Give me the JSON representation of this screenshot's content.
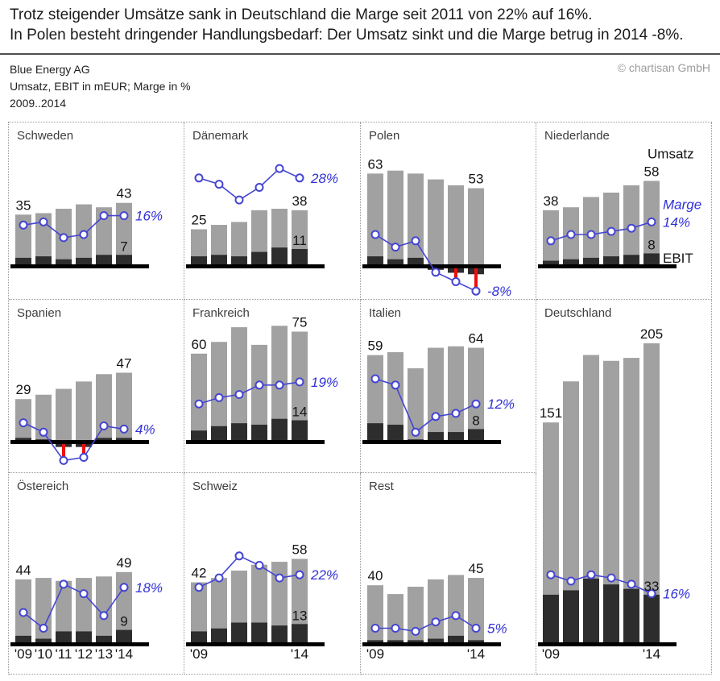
{
  "header": {
    "title_line1": "Trotz steigender Umsätze sank in Deutschland die Marge seit 2011 von 22% auf 16%.",
    "title_line2": "In Polen besteht dringender Handlungsbedarf: Der Umsatz sinkt und die Marge betrug in 2014 -8%.",
    "company": "Blue Energy AG",
    "subtitle": "Umsatz, EBIT in mEUR; Marge in %",
    "period": "2009..2014",
    "copyright": "© chartisan GmbH"
  },
  "colors": {
    "umsatz_bar": "#a1a1a1",
    "ebit_bar": "#2d2d2d",
    "marge_line": "#4545d2",
    "marge_text": "#3232d8",
    "negative_red": "#ec0f0f",
    "baseline": "#000000",
    "value_text": "#141414",
    "panel_title": "#3d3d3d"
  },
  "chart_data": {
    "type": "bar",
    "note": "small multiples: Umsatz (gray bars) + EBIT (dark bars) in mEUR, Marge in % (blue line), 2009-2014",
    "years": [
      "'09",
      "'10",
      "'11",
      "'12",
      "'13",
      "'14"
    ],
    "panels": [
      {
        "name": "Schweden",
        "umsatz": [
          35,
          36,
          39,
          42,
          40,
          43
        ],
        "ebit": [
          5,
          6,
          4,
          5,
          7,
          7
        ],
        "marge": [
          13,
          14,
          9,
          10,
          16,
          16
        ],
        "labels": {
          "first": "35",
          "last": "43",
          "ebit": "7",
          "marge": "16%"
        },
        "x_labels": []
      },
      {
        "name": "Dänemark",
        "umsatz": [
          25,
          28,
          30,
          38,
          39,
          38
        ],
        "ebit": [
          6,
          7,
          6,
          9,
          12,
          11
        ],
        "marge": [
          28,
          26,
          21,
          25,
          31,
          28
        ],
        "labels": {
          "first": "25",
          "last": "38",
          "ebit": "11",
          "marge": "28%"
        },
        "x_labels": []
      },
      {
        "name": "Polen",
        "umsatz": [
          63,
          65,
          63,
          59,
          55,
          53
        ],
        "ebit": [
          6,
          4,
          5,
          -1,
          -3,
          -4
        ],
        "marge": [
          10,
          6,
          8,
          -2,
          -5,
          -8
        ],
        "labels": {
          "first": "63",
          "last": "53",
          "ebit": null,
          "marge": "-8%"
        },
        "x_labels": []
      },
      {
        "name": "Niederlande",
        "umsatz": [
          38,
          40,
          47,
          50,
          55,
          58
        ],
        "ebit": [
          3,
          4,
          5,
          6,
          7,
          8
        ],
        "marge": [
          8,
          10,
          10,
          11,
          12,
          14
        ],
        "labels": {
          "first": "38",
          "last": "58",
          "ebit": "8",
          "marge": "14%"
        },
        "legend": {
          "umsatz": "Umsatz",
          "marge": "Marge",
          "ebit": "EBIT"
        },
        "x_labels": []
      },
      {
        "name": "Spanien",
        "umsatz": [
          29,
          32,
          36,
          41,
          46,
          47
        ],
        "ebit": [
          2,
          1,
          -2,
          -2,
          2,
          2
        ],
        "marge": [
          6,
          3,
          -6,
          -5,
          5,
          4
        ],
        "labels": {
          "first": "29",
          "last": "47",
          "ebit": null,
          "marge": "4%"
        },
        "x_labels": []
      },
      {
        "name": "Frankreich",
        "umsatz": [
          60,
          68,
          78,
          66,
          79,
          75
        ],
        "ebit": [
          7,
          10,
          12,
          11,
          15,
          14
        ],
        "marge": [
          12,
          14,
          15,
          18,
          18,
          19
        ],
        "labels": {
          "first": "60",
          "last": "75",
          "ebit": "14",
          "marge": "19%"
        },
        "x_labels": []
      },
      {
        "name": "Italien",
        "umsatz": [
          59,
          61,
          50,
          64,
          65,
          64
        ],
        "ebit": [
          12,
          11,
          1,
          6,
          6,
          8
        ],
        "marge": [
          20,
          18,
          3,
          8,
          9,
          12
        ],
        "labels": {
          "first": "59",
          "last": "64",
          "ebit": "8",
          "marge": "12%"
        },
        "x_labels": []
      },
      {
        "name": "Deutschland",
        "umsatz": [
          151,
          179,
          197,
          193,
          195,
          205
        ],
        "ebit": [
          33,
          36,
          44,
          40,
          37,
          33
        ],
        "marge": [
          22,
          20,
          22,
          21,
          19,
          16
        ],
        "labels": {
          "first": "151",
          "last": "205",
          "ebit": "33",
          "marge": "16%"
        },
        "x_labels": [
          "'09",
          "'14"
        ]
      },
      {
        "name": "Östereich",
        "umsatz": [
          44,
          45,
          43,
          45,
          46,
          49
        ],
        "ebit": [
          5,
          3,
          8,
          8,
          5,
          9
        ],
        "marge": [
          10,
          5,
          19,
          16,
          9,
          18
        ],
        "labels": {
          "first": "44",
          "last": "49",
          "ebit": "9",
          "marge": "18%"
        },
        "x_labels": [
          "'09",
          "'10",
          "'11",
          "'12",
          "'13",
          "'14"
        ]
      },
      {
        "name": "Schweiz",
        "umsatz": [
          42,
          45,
          50,
          54,
          56,
          58
        ],
        "ebit": [
          8,
          10,
          14,
          14,
          12,
          13
        ],
        "marge": [
          18,
          21,
          28,
          25,
          21,
          22
        ],
        "labels": {
          "first": "42",
          "last": "58",
          "ebit": "13",
          "marge": "22%"
        },
        "x_labels": [
          "'09",
          "'14"
        ]
      },
      {
        "name": "Rest",
        "umsatz": [
          40,
          34,
          39,
          44,
          47,
          45
        ],
        "ebit": [
          2,
          2,
          2,
          3,
          5,
          2
        ],
        "marge": [
          5,
          5,
          4,
          7,
          9,
          5
        ],
        "labels": {
          "first": "40",
          "last": "45",
          "ebit": null,
          "marge": "5%"
        },
        "x_labels": [
          "'09",
          "'14"
        ]
      }
    ]
  }
}
